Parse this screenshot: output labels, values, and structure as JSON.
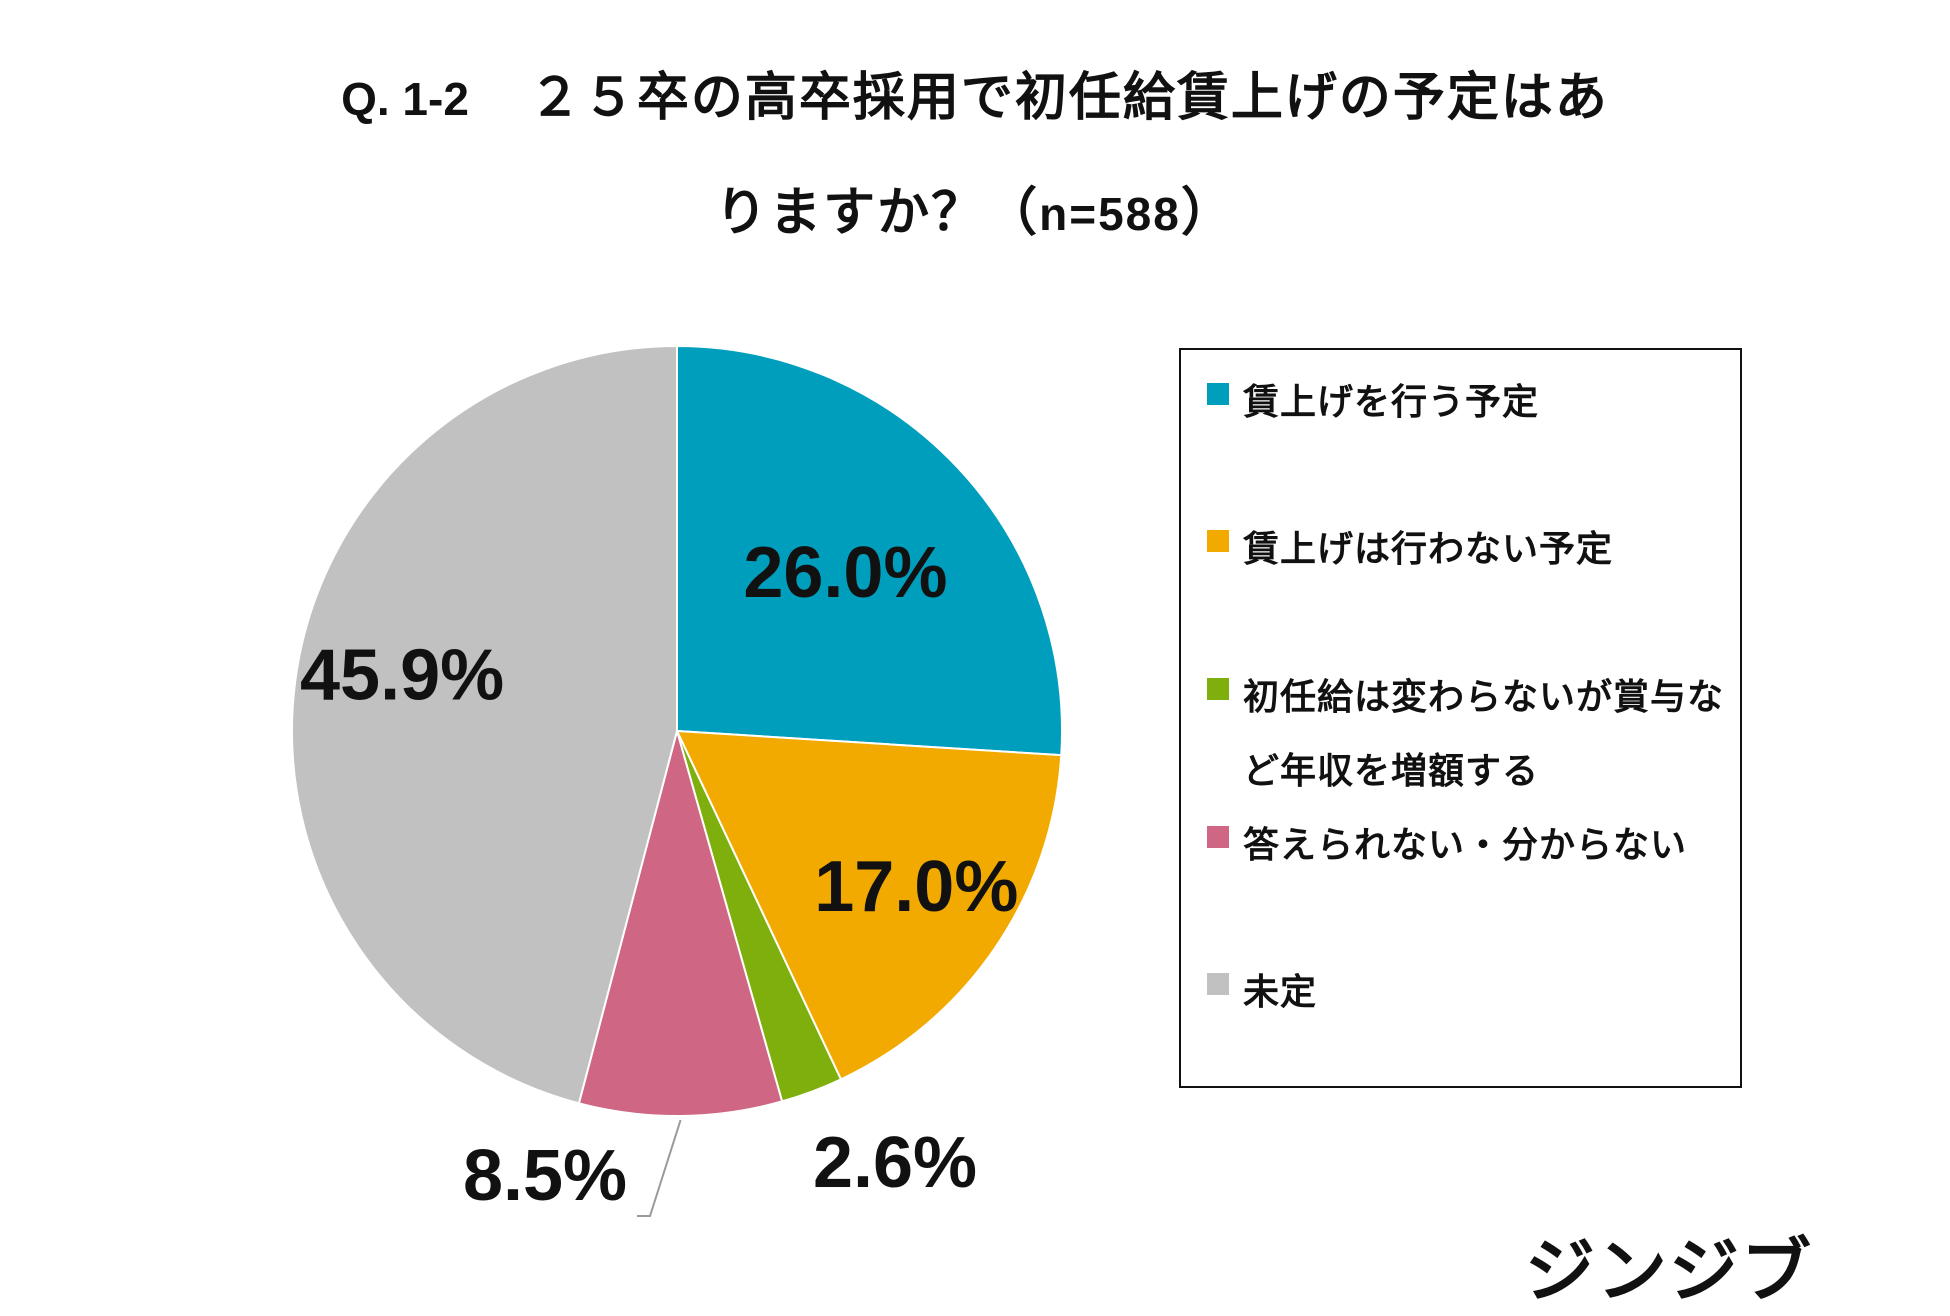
{
  "title": {
    "line1_prefix": "Q. 1-2",
    "line1": "２５卒の高卒採用で初任給賃上げの予定はあ",
    "line2": "りますか？（",
    "line2_n": "n=588",
    "line2_end": "）"
  },
  "chart_data": {
    "type": "pie",
    "title": "Q. 1-2　２５卒の高卒採用で初任給賃上げの予定はありますか？（n=588）",
    "categories": [
      "賃上げを行う予定",
      "賃上げは行わない予定",
      "初任給は変わらないが賞与など年収を増額する",
      "答えられない・分からない",
      "未定"
    ],
    "values": [
      26.0,
      17.0,
      2.6,
      8.5,
      45.9
    ],
    "data_labels": [
      "26.0%",
      "17.0%",
      "2.6%",
      "8.5%",
      "45.9%"
    ],
    "colors": [
      "#009ebd",
      "#f2a900",
      "#7faf0d",
      "#cf6683",
      "#c1c1c1"
    ],
    "legend_position": "right"
  },
  "legend": {
    "items": [
      {
        "label": "賃上げを行う予定",
        "color": "#009ebd"
      },
      {
        "label": "賃上げは行わない予定",
        "color": "#f2a900"
      },
      {
        "label": "初任給は変わらないが賞与など年収を増額する",
        "color": "#7faf0d"
      },
      {
        "label": "答えられない・分からない",
        "color": "#cf6683"
      },
      {
        "label": "未定",
        "color": "#c1c1c1"
      }
    ]
  },
  "logo": "ジンジブ"
}
